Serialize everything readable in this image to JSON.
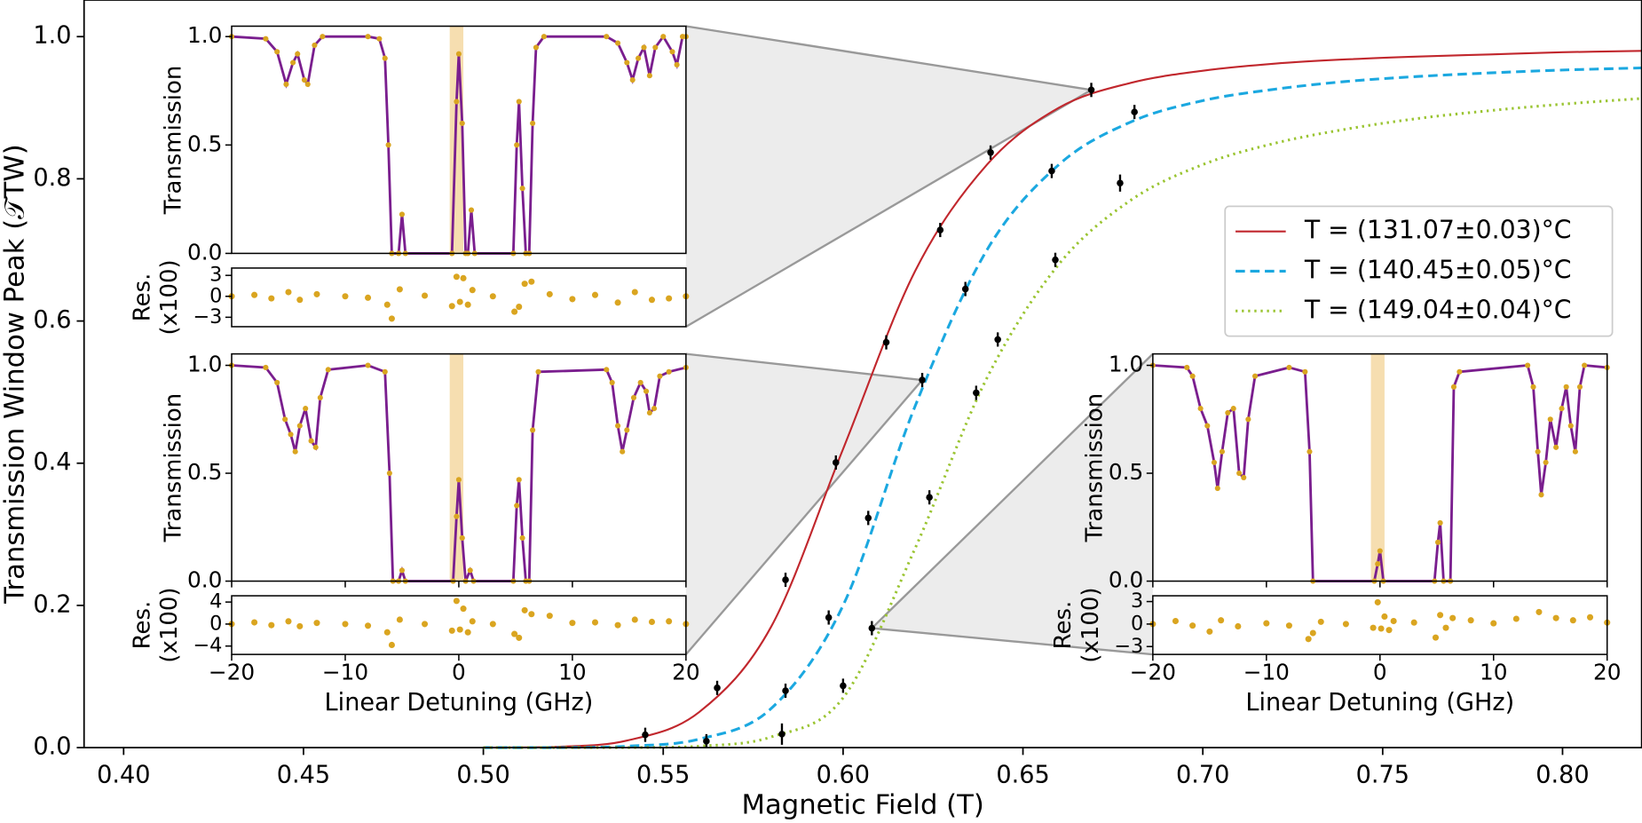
{
  "chart_data": [
    {
      "type": "line",
      "xlabel": "Magnetic Field (T)",
      "ylabel": "Transmission Window Peak (𝒯TW)",
      "xlim": [
        0.389,
        0.822
      ],
      "ylim": [
        0,
        1.0515
      ],
      "xticks": [
        {
          "value": 0.4,
          "label": "0.40"
        },
        {
          "value": 0.45,
          "label": "0.45"
        },
        {
          "value": 0.5,
          "label": "0.50"
        },
        {
          "value": 0.55,
          "label": "0.55"
        },
        {
          "value": 0.6,
          "label": "0.60"
        },
        {
          "value": 0.65,
          "label": "0.65"
        },
        {
          "value": 0.7,
          "label": "0.70"
        },
        {
          "value": 0.75,
          "label": "0.75"
        },
        {
          "value": 0.8,
          "label": "0.80"
        }
      ],
      "yticks": [
        {
          "value": 0,
          "label": "0.0"
        },
        {
          "value": 0.2,
          "label": "0.2"
        },
        {
          "value": 0.4,
          "label": "0.4"
        },
        {
          "value": 0.6,
          "label": "0.6"
        },
        {
          "value": 0.8,
          "label": "0.8"
        },
        {
          "value": 1,
          "label": "1.0"
        }
      ],
      "legend": "right",
      "fit_x": [
        0.5,
        0.52,
        0.54,
        0.56,
        0.58,
        0.6,
        0.62,
        0.64,
        0.66,
        0.68,
        0.7,
        0.72,
        0.74,
        0.76,
        0.78,
        0.8,
        0.822
      ],
      "series": [
        {
          "name": "T = (131.07±0.03)°C",
          "color": "#c1272d",
          "linestyle": "solid",
          "fit_values": [
            0,
            0.001,
            0.01,
            0.05,
            0.17,
            0.42,
            0.67,
            0.82,
            0.9,
            0.935,
            0.952,
            0.962,
            0.968,
            0.972,
            0.975,
            0.978,
            0.98
          ],
          "x": [
            0.545,
            0.565,
            0.584,
            0.598,
            0.612,
            0.627,
            0.641,
            0.669
          ],
          "values": [
            0.018,
            0.084,
            0.236,
            0.401,
            0.57,
            0.728,
            0.837,
            0.925
          ],
          "errors": [
            0.01,
            0.01,
            0.01,
            0.01,
            0.01,
            0.01,
            0.01,
            0.01
          ]
        },
        {
          "name": "T = (140.45±0.05)°C",
          "color": "#1ba8e0",
          "linestyle": "dashed",
          "fit_values": [
            0,
            0,
            0.002,
            0.012,
            0.055,
            0.2,
            0.48,
            0.7,
            0.82,
            0.88,
            0.91,
            0.926,
            0.937,
            0.944,
            0.949,
            0.953,
            0.956
          ],
          "x": [
            0.562,
            0.584,
            0.596,
            0.607,
            0.622,
            0.634,
            0.658,
            0.681
          ],
          "values": [
            0.009,
            0.08,
            0.183,
            0.323,
            0.517,
            0.645,
            0.811,
            0.894
          ],
          "errors": [
            0.01,
            0.01,
            0.01,
            0.01,
            0.01,
            0.01,
            0.01,
            0.01
          ]
        },
        {
          "name": "T = (149.04±0.04)°C",
          "color": "#9ac431",
          "linestyle": "dotted",
          "fit_values": [
            0,
            0,
            0,
            0.002,
            0.015,
            0.07,
            0.28,
            0.52,
            0.68,
            0.77,
            0.82,
            0.85,
            0.87,
            0.885,
            0.896,
            0.905,
            0.913
          ],
          "x": [
            0.583,
            0.6,
            0.608,
            0.624,
            0.637,
            0.643,
            0.659,
            0.677
          ],
          "values": [
            0.019,
            0.087,
            0.168,
            0.352,
            0.499,
            0.574,
            0.686,
            0.794
          ],
          "errors": [
            0.015,
            0.01,
            0.01,
            0.01,
            0.01,
            0.01,
            0.01,
            0.012
          ]
        }
      ]
    },
    {
      "type": "spectrum",
      "xlim": [
        -20,
        20
      ],
      "window": [
        -0.8,
        0.4
      ],
      "fit_color": "#7a1e8e",
      "data_color": "#daa520",
      "transmission": {
        "ylabel": "Transmission",
        "ylim": [
          0,
          1.048
        ],
        "yticks": [
          {
            "value": 0,
            "label": "0.0"
          },
          {
            "value": 0.5,
            "label": "0.5"
          },
          {
            "value": 1,
            "label": "1.0"
          }
        ],
        "x": [
          -20,
          -17,
          -16,
          -15.2,
          -14.6,
          -14.2,
          -13.6,
          -13.3,
          -12.7,
          -12,
          -8,
          -7,
          -6.5,
          -6.2,
          -5.9,
          -5.3,
          -5,
          -4.7,
          -0.6,
          -0.2,
          0,
          0.3,
          0.6,
          0.8,
          1.1,
          1.4,
          4.8,
          5.1,
          5.3,
          5.6,
          5.9,
          6.2,
          6.5,
          6.8,
          7.5,
          13,
          14,
          14.8,
          15.3,
          15.8,
          16.3,
          16.8,
          17.3,
          18,
          18.8,
          19.2,
          19.7,
          20
        ],
        "values": [
          1,
          0.99,
          0.93,
          0.78,
          0.88,
          0.92,
          0.8,
          0.78,
          0.96,
          1,
          1,
          0.99,
          0.9,
          0.5,
          0,
          0,
          0.18,
          0,
          0,
          0.7,
          0.92,
          0.6,
          0,
          0,
          0.2,
          0,
          0,
          0.5,
          0.7,
          0.3,
          0,
          0,
          0.6,
          0.95,
          1,
          1,
          0.97,
          0.88,
          0.8,
          0.9,
          0.95,
          0.82,
          0.95,
          1,
          0.93,
          0.87,
          1,
          1
        ]
      },
      "residuals": {
        "ylabel": [
          "Res.",
          "(x100)"
        ],
        "ylim": [
          -4.35,
          4.05
        ],
        "yticks": [
          {
            "value": -3,
            "label": "−3"
          },
          0,
          3
        ],
        "x": [
          -20,
          -18,
          -16.5,
          -15,
          -14,
          -12.5,
          -10,
          -8,
          -6.3,
          -5.9,
          -5.2,
          -3,
          -0.6,
          -0.2,
          0.1,
          0.4,
          0.8,
          1.2,
          3,
          4.9,
          5.3,
          5.8,
          6.4,
          8,
          10,
          12,
          14,
          15.5,
          17,
          18.5,
          20
        ],
        "values": [
          0,
          0.2,
          -0.3,
          0.6,
          -0.5,
          0.3,
          0,
          -0.2,
          -1.2,
          -3.2,
          1,
          0.1,
          -1.4,
          2.8,
          -0.8,
          2.6,
          -1.2,
          0.9,
          0,
          -2.2,
          -1.5,
          1.8,
          2.1,
          0.3,
          -0.4,
          0.2,
          -0.9,
          0.6,
          -0.5,
          -0.3,
          0
        ]
      }
    },
    {
      "type": "spectrum",
      "xlim": [
        -20,
        20
      ],
      "window": [
        -0.8,
        0.4
      ],
      "fit_color": "#7a1e8e",
      "data_color": "#daa520",
      "xlabel": "Linear Detuning (GHz)",
      "xticks": [
        {
          "value": -20,
          "label": "−20"
        },
        {
          "value": -10,
          "label": "−10"
        },
        0,
        10,
        20
      ],
      "transmission": {
        "ylabel": "Transmission",
        "ylim": [
          0,
          1.053
        ],
        "yticks": [
          {
            "value": 0,
            "label": "0.0"
          },
          {
            "value": 0.5,
            "label": "0.5"
          },
          {
            "value": 1,
            "label": "1.0"
          }
        ],
        "x": [
          -20,
          -17,
          -16,
          -15.3,
          -14.8,
          -14.4,
          -14,
          -13.5,
          -13,
          -12.6,
          -12.2,
          -11.5,
          -8,
          -6.5,
          -6.1,
          -5.8,
          -5.3,
          -5,
          -4.7,
          -0.5,
          -0.2,
          0,
          0.3,
          0.6,
          1,
          1.3,
          4.8,
          5.1,
          5.3,
          5.6,
          5.9,
          6.2,
          6.5,
          7,
          13,
          13.5,
          14,
          14.4,
          14.8,
          15.4,
          16,
          16.5,
          16.8,
          17.2,
          17.7,
          18.5,
          20
        ],
        "values": [
          1,
          0.99,
          0.92,
          0.75,
          0.68,
          0.6,
          0.72,
          0.8,
          0.65,
          0.62,
          0.85,
          0.98,
          1,
          0.97,
          0.5,
          0,
          0,
          0.05,
          0,
          0,
          0.3,
          0.47,
          0.2,
          0,
          0.05,
          0,
          0,
          0.35,
          0.47,
          0.2,
          0,
          0,
          0.7,
          0.97,
          0.98,
          0.92,
          0.72,
          0.6,
          0.7,
          0.85,
          0.92,
          0.88,
          0.78,
          0.8,
          0.95,
          0.97,
          0.99
        ]
      },
      "residuals": {
        "ylabel": [
          "Res.",
          "(x100)"
        ],
        "ylim": [
          -5.52,
          5.14
        ],
        "yticks": [
          {
            "value": -4,
            "label": "−4"
          },
          0,
          4
        ],
        "x": [
          -20,
          -18,
          -16.5,
          -15,
          -14,
          -12.5,
          -10,
          -8,
          -6.3,
          -5.9,
          -5.2,
          -3,
          -0.6,
          -0.2,
          0.1,
          0.4,
          0.8,
          1.2,
          3,
          4.9,
          5.3,
          5.8,
          6.4,
          8,
          10,
          12,
          14,
          15.5,
          17,
          18.5,
          20
        ],
        "values": [
          0,
          0.3,
          -0.2,
          0.5,
          -0.4,
          0.2,
          0,
          -0.3,
          -1.5,
          -3.8,
          0.8,
          0,
          -1.2,
          4.2,
          -1,
          2.8,
          -1.5,
          0.5,
          0,
          -1.8,
          -2.5,
          2.5,
          1.8,
          1.5,
          0.2,
          0.3,
          -0.2,
          0.8,
          0.4,
          0.5,
          0
        ]
      }
    },
    {
      "type": "spectrum",
      "xlim": [
        -20,
        20
      ],
      "window": [
        -0.8,
        0.4
      ],
      "fit_color": "#7a1e8e",
      "data_color": "#daa520",
      "xlabel": "Linear Detuning (GHz)",
      "xticks": [
        {
          "value": -20,
          "label": "−20"
        },
        {
          "value": -10,
          "label": "−10"
        },
        0,
        10,
        20
      ],
      "transmission": {
        "ylabel": "Transmission",
        "ylim": [
          0,
          1.053
        ],
        "yticks": [
          {
            "value": 0,
            "label": "0.0"
          },
          {
            "value": 0.5,
            "label": "0.5"
          },
          {
            "value": 1,
            "label": "1.0"
          }
        ],
        "x": [
          -20,
          -17,
          -16.5,
          -15.8,
          -15.2,
          -14.6,
          -14.3,
          -13.9,
          -13.4,
          -12.9,
          -12.4,
          -12,
          -11.6,
          -11,
          -8,
          -6.6,
          -6.2,
          -5.9,
          -0.5,
          -0.2,
          0,
          0.3,
          4.8,
          5.1,
          5.3,
          5.6,
          6.2,
          6.5,
          7,
          13,
          13.5,
          13.9,
          14.2,
          14.6,
          15,
          15.5,
          16,
          16.4,
          16.8,
          17.2,
          17.6,
          18,
          20
        ],
        "values": [
          1,
          0.99,
          0.95,
          0.8,
          0.72,
          0.55,
          0.43,
          0.6,
          0.78,
          0.8,
          0.5,
          0.48,
          0.75,
          0.95,
          0.99,
          0.97,
          0.6,
          0,
          0,
          0.08,
          0.14,
          0,
          0,
          0.18,
          0.27,
          0,
          0,
          0.9,
          0.97,
          1,
          0.9,
          0.6,
          0.4,
          0.55,
          0.75,
          0.62,
          0.8,
          0.9,
          0.72,
          0.6,
          0.9,
          1,
          0.99
        ]
      },
      "residuals": {
        "ylabel": [
          "Res.",
          "(x100)"
        ],
        "ylim": [
          -4.05,
          3.77
        ],
        "yticks": [
          {
            "value": -3,
            "label": "−3"
          },
          0,
          3
        ],
        "x": [
          -20,
          -18,
          -16.5,
          -15,
          -14,
          -12.5,
          -10,
          -8,
          -6.3,
          -5.9,
          -5.2,
          -3,
          -0.6,
          -0.2,
          0.1,
          0.4,
          0.8,
          1.2,
          3,
          4.9,
          5.3,
          5.8,
          6.4,
          8,
          10,
          12,
          14,
          15.5,
          17,
          18.5,
          20
        ],
        "values": [
          0,
          0.4,
          -0.2,
          -1,
          0.5,
          -0.3,
          0.1,
          -0.2,
          -2,
          -1.2,
          0.3,
          0,
          -0.5,
          2.9,
          -0.6,
          1,
          -0.8,
          0.4,
          0.2,
          -1.8,
          1.2,
          -0.5,
          0.8,
          0.5,
          0.1,
          0.7,
          1.6,
          0.8,
          0.5,
          0.9,
          0.2
        ]
      }
    }
  ]
}
